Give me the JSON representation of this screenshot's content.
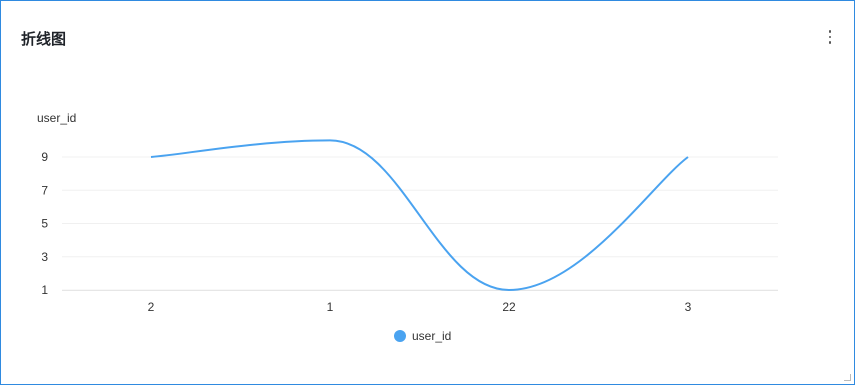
{
  "panel": {
    "title": "折线图"
  },
  "chart_data": {
    "type": "line",
    "smooth": true,
    "categories": [
      "2",
      "1",
      "22",
      "3"
    ],
    "series": [
      {
        "name": "user_id",
        "values": [
          9,
          10,
          1,
          9
        ],
        "color": "#4aa3f0"
      }
    ],
    "ylabel": "user_id",
    "xlabel": "",
    "yticks": [
      1,
      3,
      5,
      7,
      9
    ],
    "ylim": [
      1,
      10
    ],
    "grid": true,
    "legend": "bottom-center",
    "accent_color": "#2f8ae0"
  }
}
